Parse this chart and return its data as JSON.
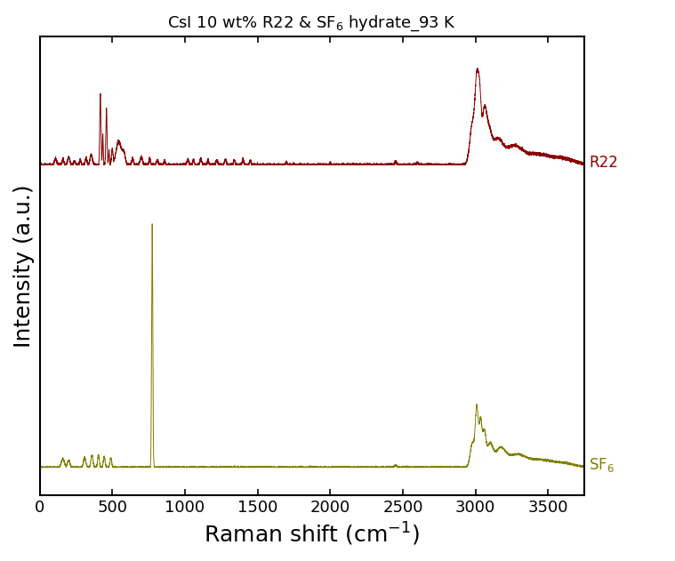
{
  "title": "CsI 10 wt% R22 & SF$_6$ hydrate_93 K",
  "xlabel": "Raman shift (cm$^{-1}$)",
  "ylabel": "Intensity (a.u.)",
  "r22_color": "#8B0000",
  "sf6_color": "#808000",
  "r22_label": "R22",
  "sf6_label": "SF$_6$",
  "xmin": 0,
  "xmax": 3750,
  "background_color": "#ffffff",
  "title_color": "#000000",
  "title_fontsize": 13,
  "axis_label_fontsize": 18,
  "tick_fontsize": 13,
  "linewidth": 0.7
}
